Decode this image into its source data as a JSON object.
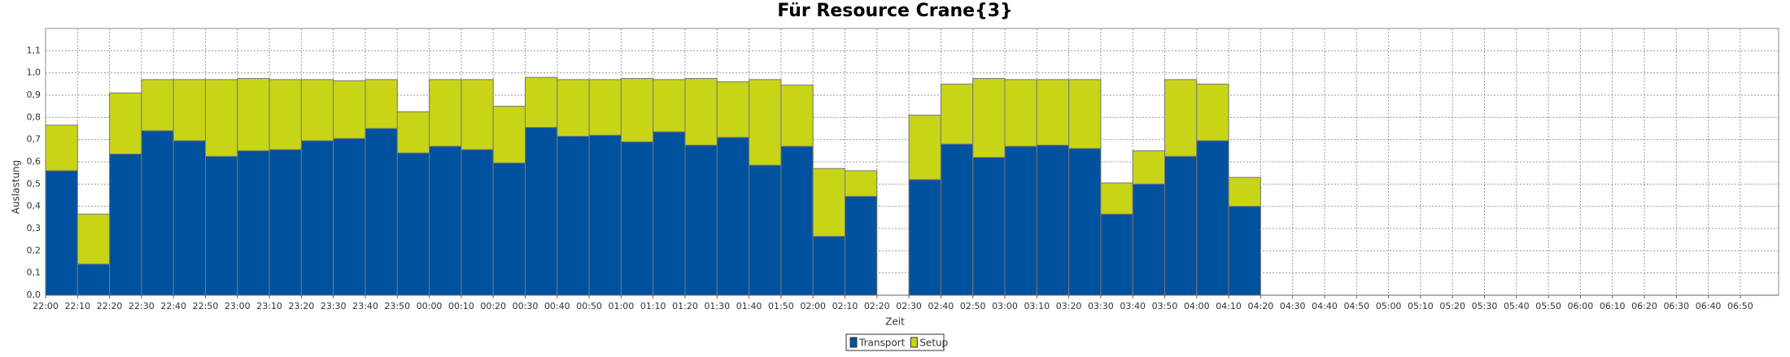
{
  "chart_data": {
    "type": "stacked_bar",
    "title": "Für Resource Crane{3}",
    "y_label": "Auslastung",
    "x_label": "Zeit",
    "categories": [
      "22:00",
      "22:10",
      "22:20",
      "22:30",
      "22:40",
      "22:50",
      "23:00",
      "23:10",
      "23:20",
      "23:30",
      "23:40",
      "23:50",
      "00:00",
      "00:10",
      "00:20",
      "00:30",
      "00:40",
      "00:50",
      "01:00",
      "01:10",
      "01:20",
      "01:30",
      "01:40",
      "01:50",
      "02:00",
      "02:10",
      "02:20",
      "02:30",
      "02:40",
      "02:50",
      "03:00",
      "03:10",
      "03:20",
      "03:30",
      "03:40",
      "03:50",
      "04:00",
      "04:10",
      "04:20",
      "04:30",
      "04:40",
      "04:50",
      "05:00",
      "05:10",
      "05:20",
      "05:30",
      "05:40",
      "05:50",
      "06:00",
      "06:10",
      "06:20",
      "06:30",
      "06:40",
      "06:50"
    ],
    "series": [
      {
        "name": "Transport",
        "color": "#00519e",
        "values": [
          0.56,
          0.14,
          0.635,
          0.74,
          0.695,
          0.625,
          0.65,
          0.655,
          0.695,
          0.705,
          0.75,
          0.64,
          0.67,
          0.655,
          0.595,
          0.755,
          0.715,
          0.72,
          0.69,
          0.735,
          0.675,
          0.71,
          0.585,
          0.67,
          0.265,
          0.445,
          null,
          0.52,
          0.68,
          0.62,
          0.67,
          0.675,
          0.66,
          0.365,
          0.5,
          0.625,
          0.695,
          0.4,
          null,
          null,
          null,
          null,
          null,
          null,
          null,
          null,
          null,
          null,
          null,
          null,
          null,
          null,
          null,
          null
        ]
      },
      {
        "name": "Setup",
        "color": "#c8d416",
        "values": [
          0.205,
          0.225,
          0.275,
          0.23,
          0.275,
          0.345,
          0.325,
          0.315,
          0.275,
          0.26,
          0.22,
          0.185,
          0.3,
          0.315,
          0.255,
          0.225,
          0.255,
          0.25,
          0.285,
          0.235,
          0.3,
          0.25,
          0.385,
          0.275,
          0.305,
          0.115,
          null,
          0.29,
          0.27,
          0.355,
          0.3,
          0.295,
          0.31,
          0.14,
          0.15,
          0.345,
          0.255,
          0.13,
          null,
          null,
          null,
          null,
          null,
          null,
          null,
          null,
          null,
          null,
          null,
          null,
          null,
          null,
          null,
          null
        ]
      }
    ],
    "ylim": [
      0,
      1.2
    ],
    "yticks": [
      {
        "value": 0,
        "label": "0,0"
      },
      {
        "value": 0.1,
        "label": "0,1"
      },
      {
        "value": 0.2,
        "label": "0,2"
      },
      {
        "value": 0.3,
        "label": "0,3"
      },
      {
        "value": 0.4,
        "label": "0,4"
      },
      {
        "value": 0.5,
        "label": "0,5"
      },
      {
        "value": 0.6,
        "label": "0,6"
      },
      {
        "value": 0.7,
        "label": "0,7"
      },
      {
        "value": 0.8,
        "label": "0,8"
      },
      {
        "value": 0.9,
        "label": "0,9"
      },
      {
        "value": 1.0,
        "label": "1,0"
      },
      {
        "value": 1.1,
        "label": "1,1"
      }
    ],
    "grid": true,
    "legend": "bottom"
  }
}
